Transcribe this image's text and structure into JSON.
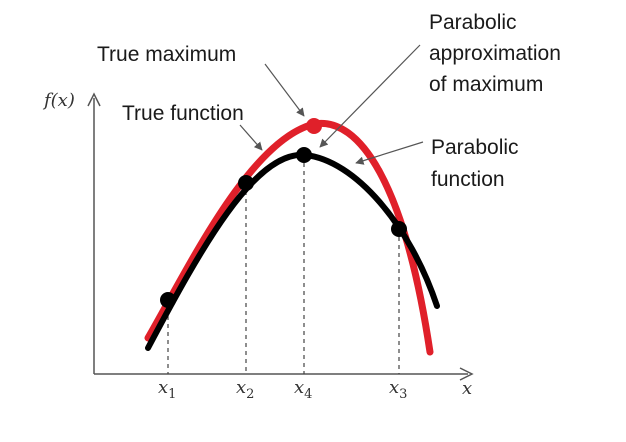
{
  "axes": {
    "y_label": "f(x)",
    "x_label": "x"
  },
  "ticks": [
    {
      "base": "x",
      "sub": "1"
    },
    {
      "base": "x",
      "sub": "2"
    },
    {
      "base": "x",
      "sub": "4"
    },
    {
      "base": "x",
      "sub": "3"
    }
  ],
  "labels": {
    "true_maximum": "True maximum",
    "true_function": "True function",
    "parabolic_approx": [
      "Parabolic",
      "approximation",
      "of maximum"
    ],
    "parabolic_function": [
      "Parabolic",
      "function"
    ]
  },
  "colors": {
    "true_curve": "#000000",
    "parabolic_curve": "#e0202a",
    "axis": "#555555",
    "leader": "#555555"
  }
}
